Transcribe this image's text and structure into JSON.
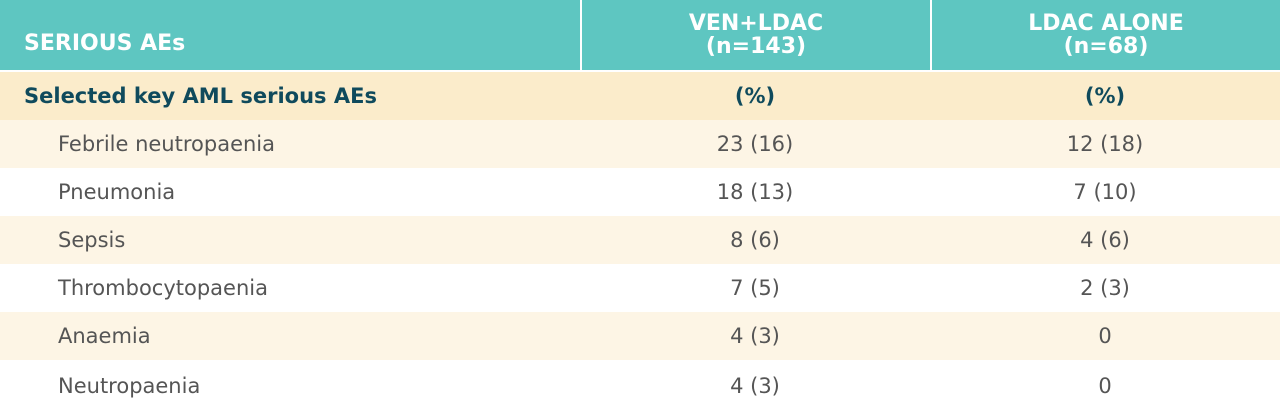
{
  "table": {
    "header": [
      [
        "SERIOUS AEs"
      ],
      [
        "VEN+LDAC",
        "(n=143)"
      ],
      [
        "LDAC ALONE",
        "(n=68)"
      ]
    ],
    "subheader": [
      "Selected key AML serious AEs",
      "(%)",
      "(%)"
    ],
    "rows": [
      [
        "Febrile neutropaenia",
        "23 (16)",
        "12 (18)"
      ],
      [
        "Pneumonia",
        "18 (13)",
        "7 (10)"
      ],
      [
        "Sepsis",
        "8 (6)",
        "4 (6)"
      ],
      [
        "Thrombocytopaenia",
        "7 (5)",
        "2 (3)"
      ],
      [
        "Anaemia",
        "4 (3)",
        "0"
      ],
      [
        "Neutropaenia",
        "4 (3)",
        "0"
      ]
    ]
  }
}
